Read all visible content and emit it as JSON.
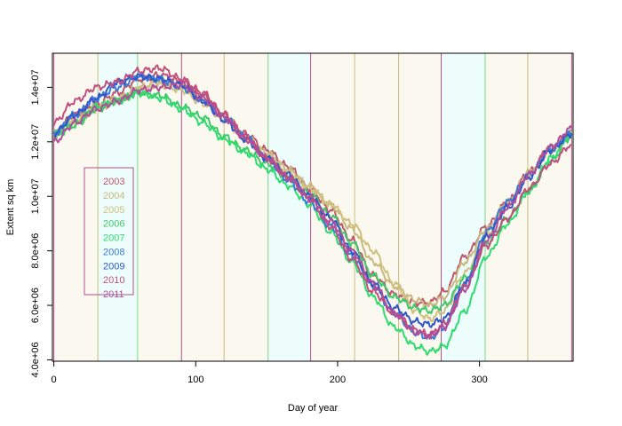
{
  "chart_data": {
    "type": "line",
    "title": "",
    "xlabel": "Day of year",
    "ylabel": "Extent sq km",
    "xlim": [
      -1,
      366
    ],
    "ylim": [
      3950000,
      15250000
    ],
    "x_ticks": [
      0,
      100,
      200,
      300
    ],
    "x_tick_labels": [
      "0",
      "100",
      "200",
      "300"
    ],
    "y_ticks": [
      4000000,
      6000000,
      8000000,
      10000000,
      12000000,
      14000000
    ],
    "y_tick_labels": [
      "4.0e+06",
      "6.0e+06",
      "8.0e+06",
      "1.0e+07",
      "1.2e+07",
      "1.4e+07"
    ],
    "grid": false,
    "legend_position": "left",
    "month_bands": [
      {
        "start": 0,
        "end": 31,
        "color": "#fbf9ef"
      },
      {
        "start": 31,
        "end": 59,
        "color": "#edfdfb"
      },
      {
        "start": 59,
        "end": 90,
        "color": "#fbf9ef"
      },
      {
        "start": 90,
        "end": 120,
        "color": "#fbf9ef"
      },
      {
        "start": 120,
        "end": 151,
        "color": "#fbf9ef"
      },
      {
        "start": 151,
        "end": 181,
        "color": "#edfdfb"
      },
      {
        "start": 181,
        "end": 212,
        "color": "#fbf9ef"
      },
      {
        "start": 212,
        "end": 243,
        "color": "#fbf9ef"
      },
      {
        "start": 243,
        "end": 273,
        "color": "#fbf9ef"
      },
      {
        "start": 273,
        "end": 304,
        "color": "#edfdfb"
      },
      {
        "start": 304,
        "end": 334,
        "color": "#fbf9ef"
      },
      {
        "start": 334,
        "end": 365,
        "color": "#fbf9ef"
      }
    ],
    "month_lines": [
      {
        "day": 0,
        "color": "#b0508e"
      },
      {
        "day": 31,
        "color": "#c8c27e"
      },
      {
        "day": 59,
        "color": "#7cd88a"
      },
      {
        "day": 90,
        "color": "#b0508e"
      },
      {
        "day": 120,
        "color": "#c8b87e"
      },
      {
        "day": 151,
        "color": "#7cd88a"
      },
      {
        "day": 181,
        "color": "#b0508e"
      },
      {
        "day": 212,
        "color": "#c8c27e"
      },
      {
        "day": 243,
        "color": "#c8b87e"
      },
      {
        "day": 273,
        "color": "#b0508e"
      },
      {
        "day": 304,
        "color": "#7cd88a"
      },
      {
        "day": 334,
        "color": "#c8b87e"
      },
      {
        "day": 365,
        "color": "#b0508e"
      }
    ],
    "series": [
      {
        "name": "2003",
        "color": "#c0566e",
        "x": [
          0,
          15,
          30,
          45,
          60,
          75,
          90,
          105,
          120,
          135,
          150,
          165,
          180,
          195,
          210,
          225,
          240,
          255,
          265,
          275,
          290,
          305,
          320,
          335,
          350,
          365
        ],
        "y": [
          12300000,
          13000000,
          13400000,
          13800000,
          14300000,
          14450000,
          14200000,
          13700000,
          13000000,
          12300000,
          11700000,
          11100000,
          10300000,
          9500000,
          8400000,
          7100000,
          6400000,
          6100000,
          6100000,
          6500000,
          7800000,
          8900000,
          9800000,
          10900000,
          11800000,
          12300000
        ]
      },
      {
        "name": "2004",
        "color": "#c8b87e",
        "x": [
          0,
          15,
          30,
          45,
          60,
          75,
          90,
          105,
          120,
          135,
          150,
          165,
          180,
          195,
          210,
          225,
          240,
          255,
          265,
          275,
          290,
          305,
          320,
          335,
          350,
          365
        ],
        "y": [
          12300000,
          12800000,
          13300000,
          13600000,
          14000000,
          14200000,
          14000000,
          13500000,
          12900000,
          12200000,
          11600000,
          11000000,
          10400000,
          9700000,
          8800000,
          7600000,
          6700000,
          6200000,
          6000000,
          6300000,
          7600000,
          8800000,
          9800000,
          10900000,
          11700000,
          12300000
        ]
      },
      {
        "name": "2005",
        "color": "#d0c080",
        "x": [
          0,
          15,
          30,
          45,
          60,
          75,
          90,
          105,
          120,
          135,
          150,
          165,
          180,
          195,
          210,
          225,
          240,
          255,
          265,
          275,
          290,
          305,
          320,
          335,
          350,
          365
        ],
        "y": [
          12200000,
          12700000,
          13200000,
          13500000,
          13900000,
          14100000,
          13900000,
          13400000,
          12800000,
          12100000,
          11500000,
          10900000,
          10300000,
          9700000,
          9000000,
          8000000,
          6800000,
          5800000,
          5500000,
          5800000,
          7200000,
          8600000,
          9700000,
          10800000,
          11700000,
          12200000
        ]
      },
      {
        "name": "2006",
        "color": "#3ec96a",
        "x": [
          0,
          15,
          30,
          45,
          60,
          75,
          90,
          105,
          120,
          135,
          150,
          165,
          180,
          195,
          210,
          225,
          240,
          255,
          265,
          275,
          290,
          305,
          320,
          335,
          350,
          365
        ],
        "y": [
          12200000,
          12600000,
          13200000,
          13500000,
          13800000,
          13700000,
          13300000,
          12900000,
          12200000,
          11700000,
          11200000,
          10700000,
          10100000,
          9300000,
          8300000,
          7100000,
          6300000,
          5900000,
          5800000,
          6000000,
          7000000,
          8300000,
          9200000,
          10200000,
          11300000,
          12200000
        ]
      },
      {
        "name": "2007",
        "color": "#2ddc6e",
        "x": [
          0,
          15,
          30,
          45,
          60,
          75,
          90,
          105,
          120,
          135,
          150,
          165,
          180,
          195,
          210,
          225,
          240,
          255,
          265,
          275,
          290,
          305,
          320,
          335,
          350,
          365
        ],
        "y": [
          12300000,
          12700000,
          13300000,
          13500000,
          13800000,
          13600000,
          13200000,
          12700000,
          12100000,
          11600000,
          11000000,
          10400000,
          9700000,
          8700000,
          7600000,
          6300000,
          5200000,
          4500000,
          4300000,
          4500000,
          5800000,
          7800000,
          9000000,
          10200000,
          11400000,
          12300000
        ]
      },
      {
        "name": "2008",
        "color": "#3d7ad8",
        "x": [
          0,
          15,
          30,
          45,
          60,
          75,
          90,
          105,
          120,
          135,
          150,
          165,
          180,
          195,
          210,
          225,
          240,
          255,
          265,
          275,
          290,
          305,
          320,
          335,
          350,
          365
        ],
        "y": [
          12300000,
          13000000,
          13600000,
          14000000,
          14400000,
          14300000,
          14000000,
          13500000,
          12900000,
          12200000,
          11400000,
          10600000,
          9800000,
          8900000,
          7800000,
          6700000,
          5700000,
          5000000,
          4800000,
          5200000,
          6800000,
          8700000,
          9800000,
          10800000,
          11700000,
          12300000
        ]
      },
      {
        "name": "2009",
        "color": "#3056c8",
        "x": [
          0,
          15,
          30,
          45,
          60,
          75,
          90,
          105,
          120,
          135,
          150,
          165,
          180,
          195,
          210,
          225,
          240,
          255,
          265,
          275,
          290,
          305,
          320,
          335,
          350,
          365
        ],
        "y": [
          12300000,
          13000000,
          13600000,
          14200000,
          14400000,
          14300000,
          14100000,
          13500000,
          12800000,
          12100000,
          11400000,
          10800000,
          10000000,
          9200000,
          8000000,
          6800000,
          5900000,
          5400000,
          5300000,
          5500000,
          6800000,
          8500000,
          9600000,
          10700000,
          11700000,
          12300000
        ]
      },
      {
        "name": "2010",
        "color": "#c24f7e",
        "x": [
          0,
          15,
          30,
          45,
          60,
          75,
          90,
          105,
          120,
          135,
          150,
          165,
          180,
          195,
          210,
          225,
          240,
          255,
          265,
          275,
          290,
          305,
          320,
          335,
          350,
          365
        ],
        "y": [
          12700000,
          13500000,
          14000000,
          14200000,
          14600000,
          14700000,
          14300000,
          13800000,
          13000000,
          12200000,
          11400000,
          10700000,
          9900000,
          8900000,
          7700000,
          6500000,
          5700000,
          5100000,
          4900000,
          5300000,
          6700000,
          8200000,
          9200000,
          10300000,
          11200000,
          11900000
        ]
      },
      {
        "name": "2011",
        "color": "#b04c9a",
        "x": [
          0,
          15,
          30,
          45,
          60,
          75,
          90,
          105,
          120,
          135,
          150,
          165,
          180,
          195,
          210,
          225,
          240,
          255,
          265,
          275,
          290,
          305,
          320,
          335,
          350,
          365
        ],
        "y": [
          12000000,
          12700000,
          13200000,
          13500000,
          13900000,
          14000000,
          14100000,
          13600000,
          12900000,
          12100000,
          11400000,
          10700000,
          10000000,
          9100000,
          8000000,
          6800000,
          5700000,
          5000000,
          4900000,
          5200000,
          6600000,
          8400000,
          9600000,
          10800000,
          11800000,
          12500000
        ]
      }
    ]
  }
}
